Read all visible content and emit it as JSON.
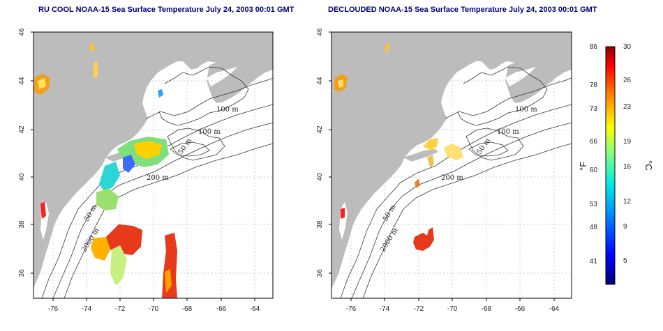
{
  "titles": {
    "left": "RU COOL NOAA-15 Sea Surface Temperature July 24, 2003 00:01 GMT",
    "right": "DECLOUDED NOAA-15 Sea Surface Temperature July 24, 2003 00:01 GMT"
  },
  "axes": {
    "lon_ticks": [
      "-76",
      "-74",
      "-72",
      "-70",
      "-68",
      "-66",
      "-64"
    ],
    "lat_ticks": [
      "46",
      "44",
      "42",
      "40",
      "38",
      "36"
    ]
  },
  "contour_labels": {
    "left": [
      "100 m",
      "100 m",
      "50 m",
      "200 m",
      "50 m",
      "2000 m"
    ],
    "right": [
      "100 m",
      "100 m",
      "50 m",
      "200 m",
      "50 m",
      "2000 m"
    ]
  },
  "colorbar": {
    "fahrenheit_ticks": [
      "86",
      "78",
      "73",
      "66",
      "60",
      "53",
      "48",
      "41"
    ],
    "celsius_ticks": [
      "30",
      "26",
      "23",
      "19",
      "16",
      "12",
      "9",
      "5"
    ],
    "fahrenheit_unit": "°F",
    "celsius_unit": "°C",
    "range_c": [
      2,
      30
    ],
    "colors": [
      "#000080",
      "#0000ff",
      "#0080ff",
      "#00ffff",
      "#80ff80",
      "#ffff00",
      "#ff8000",
      "#ff0000",
      "#800000"
    ]
  },
  "colors": {
    "land": "#bcbcbc",
    "ocean": "#ffffff",
    "contour": "#333333",
    "grid": "#bbbbbb",
    "title": "#00007a"
  }
}
